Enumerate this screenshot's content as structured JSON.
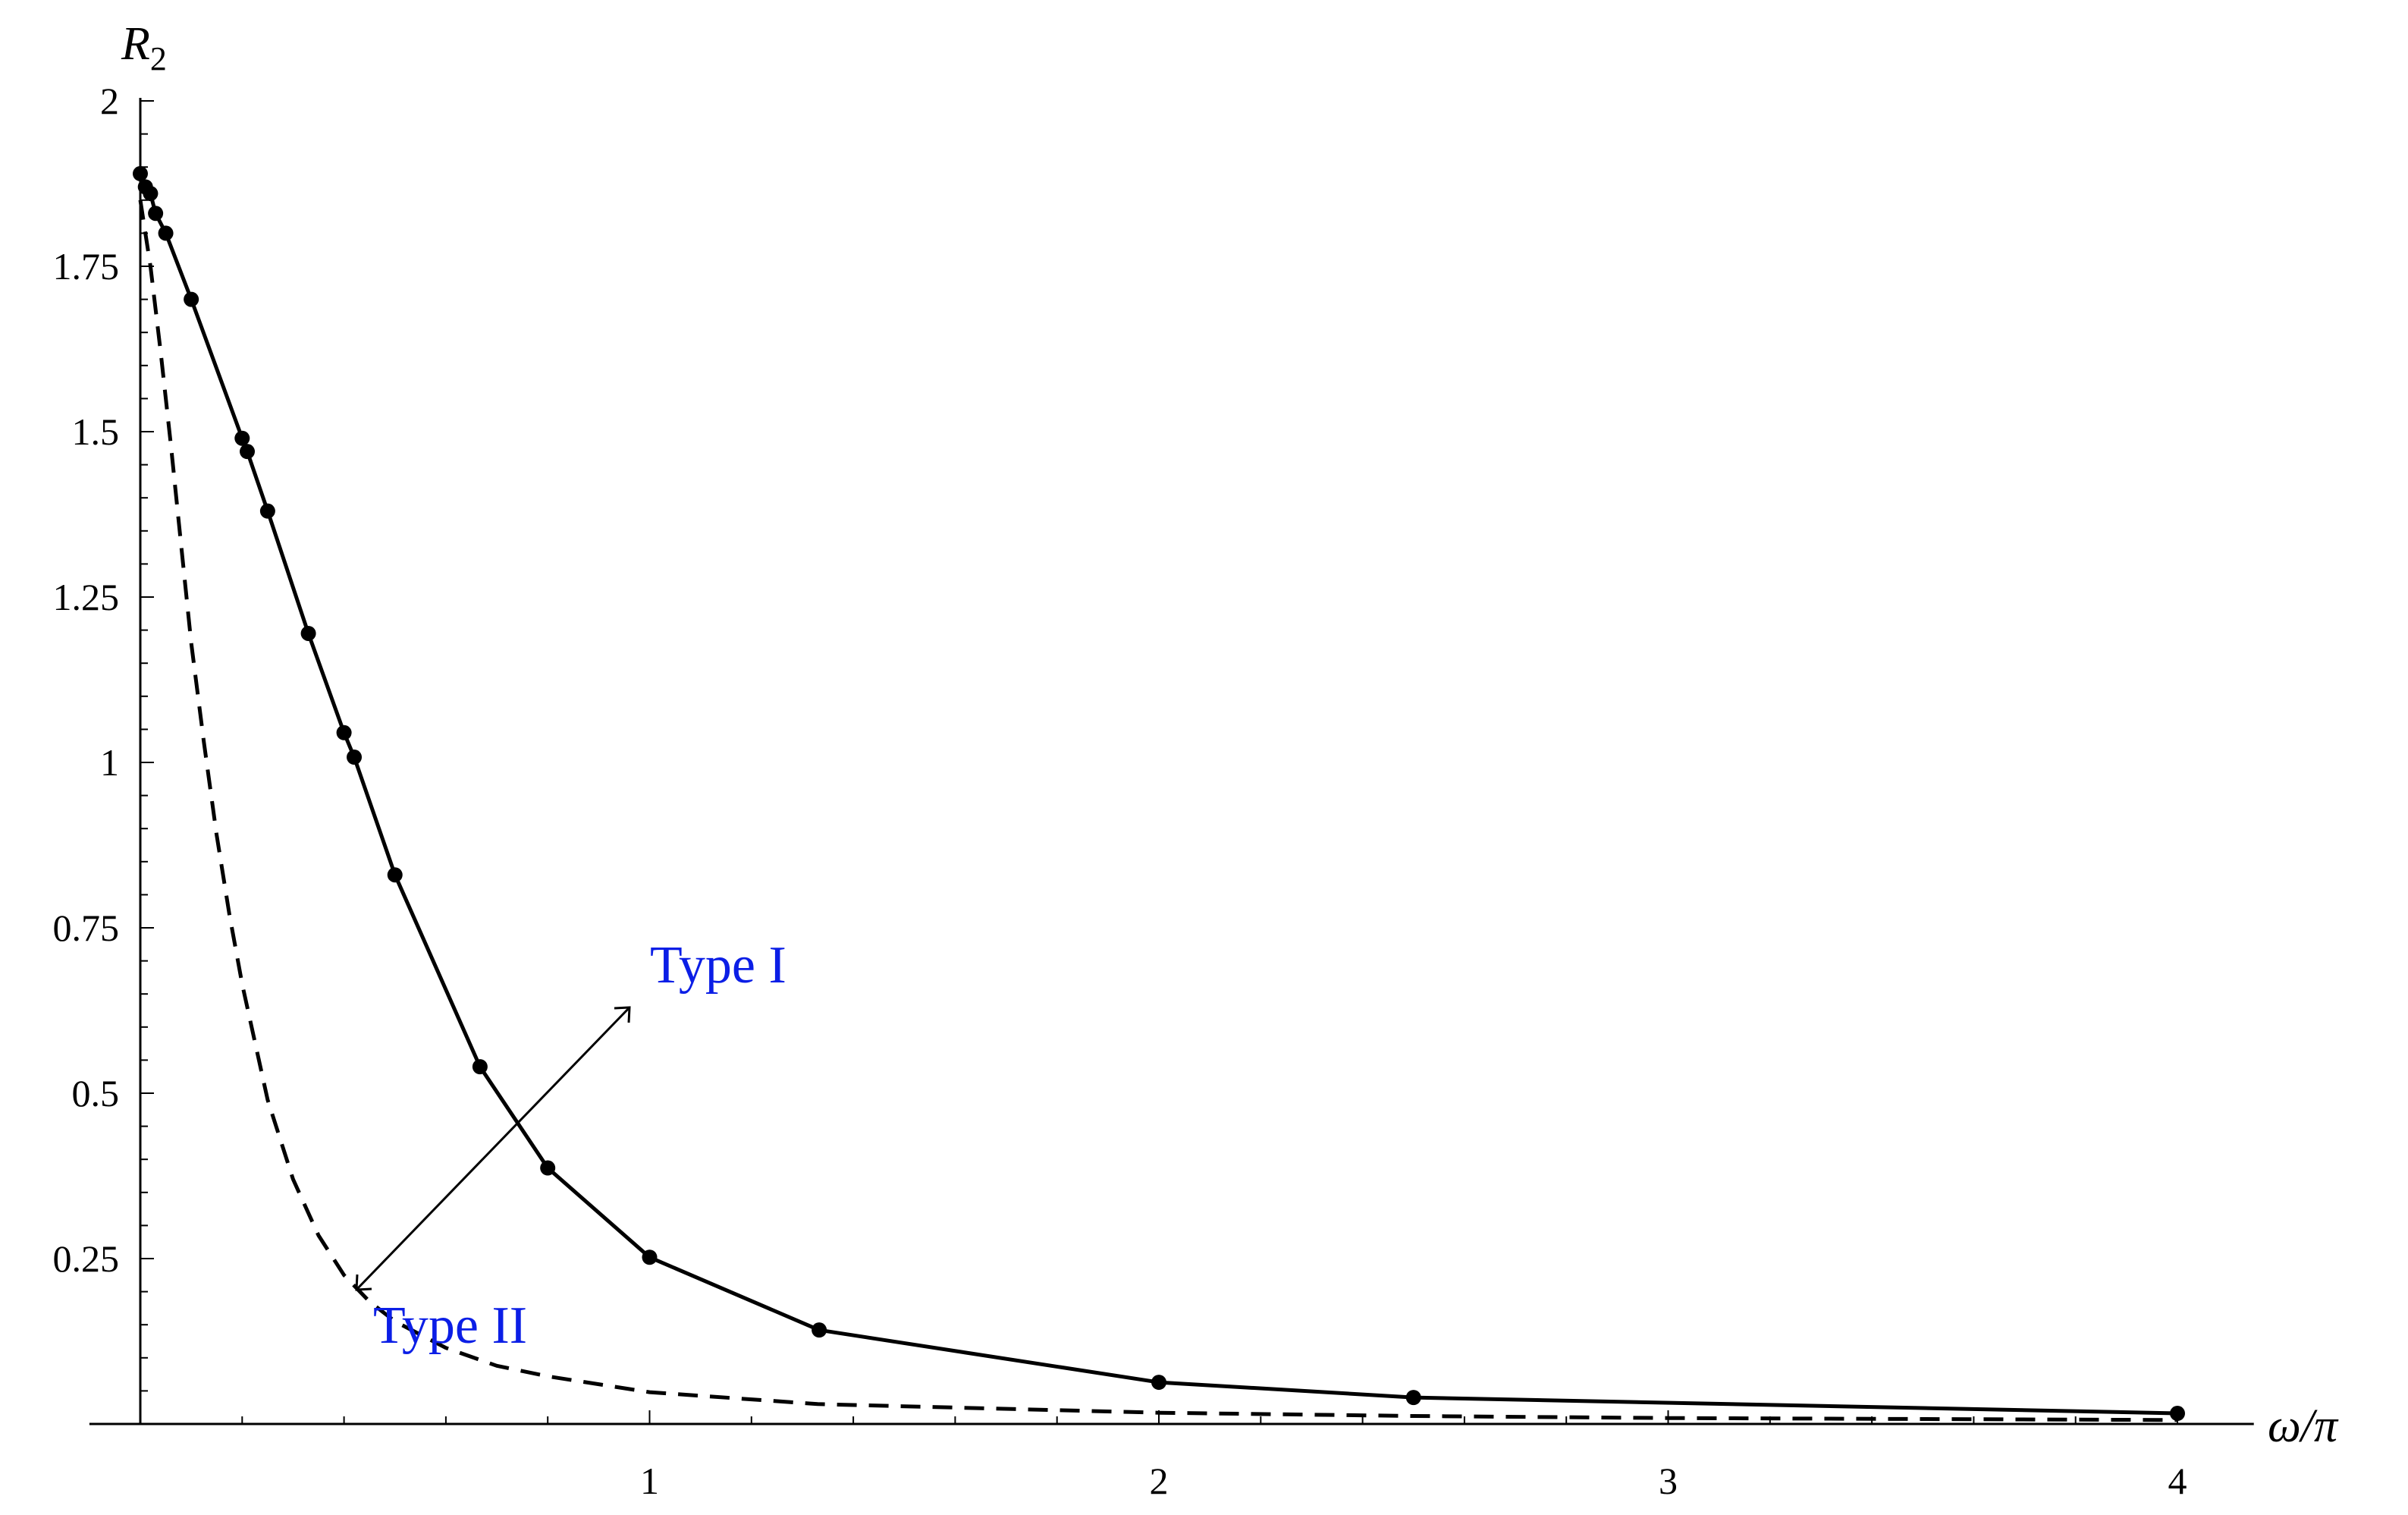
{
  "chart_data": {
    "type": "line",
    "xlabel": "ω/π",
    "ylabel": {
      "main": "R",
      "subscript": "2"
    },
    "xlim": [
      -0.1,
      4.15
    ],
    "ylim": [
      0,
      2
    ],
    "x_ticks": [
      {
        "value": 1,
        "label": "1"
      },
      {
        "value": 2,
        "label": "2"
      },
      {
        "value": 3,
        "label": "3"
      },
      {
        "value": 4,
        "label": "4"
      }
    ],
    "y_ticks": [
      {
        "value": 0.25,
        "label": "0.25"
      },
      {
        "value": 0.5,
        "label": "0.5"
      },
      {
        "value": 0.75,
        "label": "0.75"
      },
      {
        "value": 1,
        "label": "1"
      },
      {
        "value": 1.25,
        "label": "1.25"
      },
      {
        "value": 1.5,
        "label": "1.5"
      },
      {
        "value": 1.75,
        "label": "1.75"
      },
      {
        "value": 2,
        "label": "2"
      }
    ],
    "grid": false,
    "series": [
      {
        "style": "solid",
        "markers": true,
        "color": "#000000",
        "x": [
          0.0,
          0.01,
          0.02,
          0.03,
          0.05,
          0.1,
          0.2,
          0.21,
          0.25,
          0.33,
          0.4,
          0.42,
          0.5,
          0.667,
          0.8,
          1.0,
          1.333,
          2.0,
          2.5,
          4.0
        ],
        "y": [
          1.89,
          1.87,
          1.86,
          1.83,
          1.8,
          1.7,
          1.49,
          1.47,
          1.38,
          1.195,
          1.045,
          1.008,
          0.83,
          0.54,
          0.387,
          0.252,
          0.142,
          0.063,
          0.04,
          0.016
        ]
      },
      {
        "style": "dashed",
        "markers": false,
        "color": "#000000",
        "x": [
          0.0,
          0.02,
          0.04,
          0.06,
          0.08,
          0.1,
          0.125,
          0.15,
          0.175,
          0.2,
          0.25,
          0.3,
          0.35,
          0.4,
          0.45,
          0.5,
          0.6,
          0.7,
          0.8,
          1.0,
          1.33,
          2.0,
          2.5,
          3.0,
          4.0
        ],
        "y": [
          1.85,
          1.75,
          1.62,
          1.48,
          1.33,
          1.18,
          1.03,
          0.89,
          0.77,
          0.665,
          0.49,
          0.37,
          0.285,
          0.225,
          0.185,
          0.155,
          0.115,
          0.088,
          0.072,
          0.048,
          0.03,
          0.017,
          0.012,
          0.009,
          0.006
        ]
      }
    ],
    "annotations": [
      {
        "text": "Type I",
        "color": "#0b1ee6"
      },
      {
        "text": "Type II",
        "color": "#0b1ee6"
      }
    ]
  }
}
